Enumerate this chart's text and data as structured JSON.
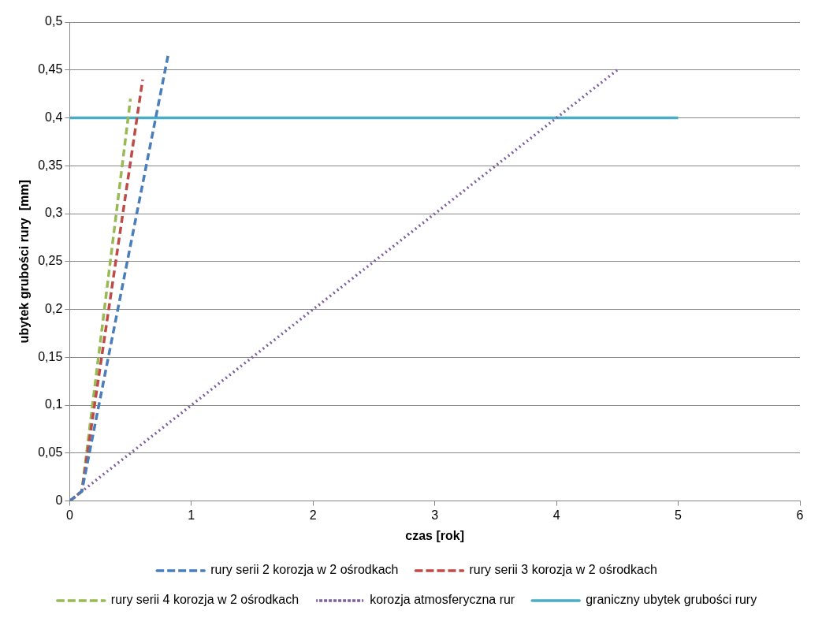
{
  "chart_data": {
    "type": "line",
    "xlabel": "czas [rok]",
    "ylabel": "ubytek grubości rury  [mm]",
    "xlim": [
      0,
      6
    ],
    "xticks": [
      0,
      1,
      2,
      3,
      4,
      5,
      6
    ],
    "ylim": [
      0,
      0.5
    ],
    "yticks": [
      {
        "value": 0,
        "label": "0"
      },
      {
        "value": 0.05,
        "label": "0,05"
      },
      {
        "value": 0.1,
        "label": "0,1"
      },
      {
        "value": 0.15,
        "label": "0,15"
      },
      {
        "value": 0.2,
        "label": "0,2"
      },
      {
        "value": 0.25,
        "label": "0,25"
      },
      {
        "value": 0.3,
        "label": "0,3"
      },
      {
        "value": 0.35,
        "label": "0,35"
      },
      {
        "value": 0.4,
        "label": "0,4"
      },
      {
        "value": 0.45,
        "label": "0,45"
      },
      {
        "value": 0.5,
        "label": "0,5"
      }
    ],
    "grid": "y",
    "legend": "bottom",
    "marker": "none",
    "series": [
      {
        "name": "rury serii 2 korozja w 2 ośrodkach",
        "color": "#4a7ebb",
        "line_style": "dashed",
        "x": [
          0,
          0.1,
          0.81
        ],
        "values": [
          0,
          0.01,
          0.466
        ]
      },
      {
        "name": "rury serii 3 korozja w 2 ośrodkach",
        "color": "#be4b48",
        "line_style": "dashed",
        "x": [
          0,
          0.1,
          0.6
        ],
        "values": [
          0,
          0.01,
          0.44
        ]
      },
      {
        "name": "rury serii 4 korozja w 2 ośrodkach",
        "color": "#98b954",
        "line_style": "dashed",
        "x": [
          0,
          0.1,
          0.5
        ],
        "values": [
          0,
          0.01,
          0.42
        ]
      },
      {
        "name": "korozja atmosferyczna rur",
        "color": "#7d60a0",
        "line_style": "dotted",
        "x": [
          0,
          4.5
        ],
        "values": [
          0,
          0.45
        ]
      },
      {
        "name": "graniczny ubytek grubości rury",
        "color": "#4bacc6",
        "line_style": "solid",
        "x": [
          0,
          5
        ],
        "values": [
          0.4,
          0.4
        ]
      }
    ]
  }
}
